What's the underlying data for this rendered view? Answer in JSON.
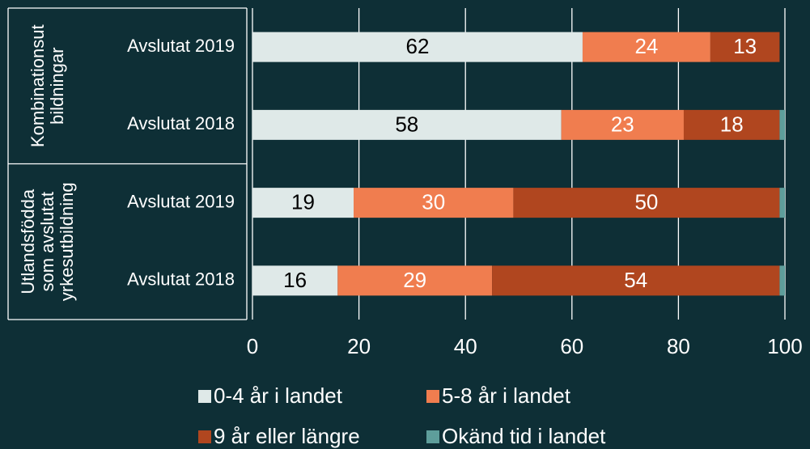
{
  "chart_data": {
    "type": "stacked-barh",
    "categories": [
      "Avslutat 2019",
      "Avslutat 2018",
      "Avslutat 2019",
      "Avslutat 2018"
    ],
    "groups": [
      {
        "lines": [
          "Kombinationsut",
          "bildningar"
        ],
        "size": 2
      },
      {
        "lines": [
          "Utlandsfödda",
          "som avslutat",
          "yrkesutbildning"
        ],
        "size": 2
      }
    ],
    "series": [
      {
        "name": "0-4 år i landet",
        "color": "#dfe9e8",
        "label_color": "#000000",
        "show_labels": true,
        "values": [
          62,
          58,
          19,
          16
        ]
      },
      {
        "name": "5-8 år i landet",
        "color": "#f07d4f",
        "label_color": "#ffffff",
        "show_labels": true,
        "values": [
          24,
          23,
          30,
          29
        ]
      },
      {
        "name": "9 år eller längre",
        "color": "#b0461f",
        "label_color": "#ffffff",
        "show_labels": true,
        "values": [
          13,
          18,
          50,
          54
        ]
      },
      {
        "name": "Okänd tid i landet",
        "color": "#5e9e9b",
        "label_color": "#ffffff",
        "show_labels": false,
        "values": [
          0,
          1,
          1,
          1
        ]
      }
    ],
    "xlim": [
      0,
      100
    ],
    "xticks": [
      0,
      20,
      40,
      60,
      80,
      100
    ],
    "grid": true
  }
}
